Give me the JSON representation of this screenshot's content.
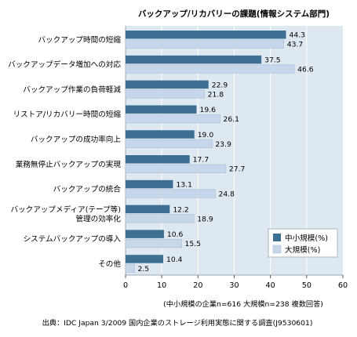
{
  "chart_data": {
    "type": "bar",
    "orientation": "horizontal",
    "title": "バックアップ/リカバリーの課題(情報システム部門)",
    "categories": [
      [
        "バックアップ時間の短縮"
      ],
      [
        "バックアップデータ増加への対応"
      ],
      [
        "バックアップ作業の負荷軽減"
      ],
      [
        "リストア/リカバリー時間の短縮"
      ],
      [
        "バックアップの成功率向上"
      ],
      [
        "業務無停止バックアップの実現"
      ],
      [
        "バックアップの統合"
      ],
      [
        "バックアップメディア(テープ等)",
        "管理の効率化"
      ],
      [
        "システムバックアップの導入"
      ],
      [
        "その他"
      ]
    ],
    "series": [
      {
        "name": "中小規模(%)",
        "color": "#3d6f93",
        "values": [
          44.3,
          37.5,
          22.9,
          19.6,
          19.0,
          17.7,
          13.1,
          12.2,
          10.6,
          10.4
        ]
      },
      {
        "name": "大規模(%)",
        "color": "#c7d7eb",
        "values": [
          43.7,
          46.6,
          21.8,
          26.1,
          23.9,
          27.7,
          24.8,
          18.9,
          15.5,
          2.5
        ]
      }
    ],
    "xlim": [
      0,
      60
    ],
    "xticks": [
      0,
      10,
      20,
      30,
      40,
      50,
      60
    ],
    "value_labels": [
      [
        "44.3",
        "37.5",
        "22.9",
        "19.6",
        "19.0",
        "17.7",
        "13.1",
        "12.2",
        "10.6",
        "10.4"
      ],
      [
        "43.7",
        "46.6",
        "21.8",
        "26.1",
        "23.9",
        "27.7",
        "24.8",
        "18.9",
        "15.5",
        "2.5"
      ]
    ],
    "legend_position": "bottom-right",
    "grid": true,
    "plot_background": "#dde8f1",
    "grid_color": "#ffffff",
    "sample_note": "(中小規模の企業n=616 大規模n=238 複数回答)",
    "source": "出典：IDC Japan 3/2009 国内企業のストレージ利用実態に関する調査(J9530601)"
  }
}
